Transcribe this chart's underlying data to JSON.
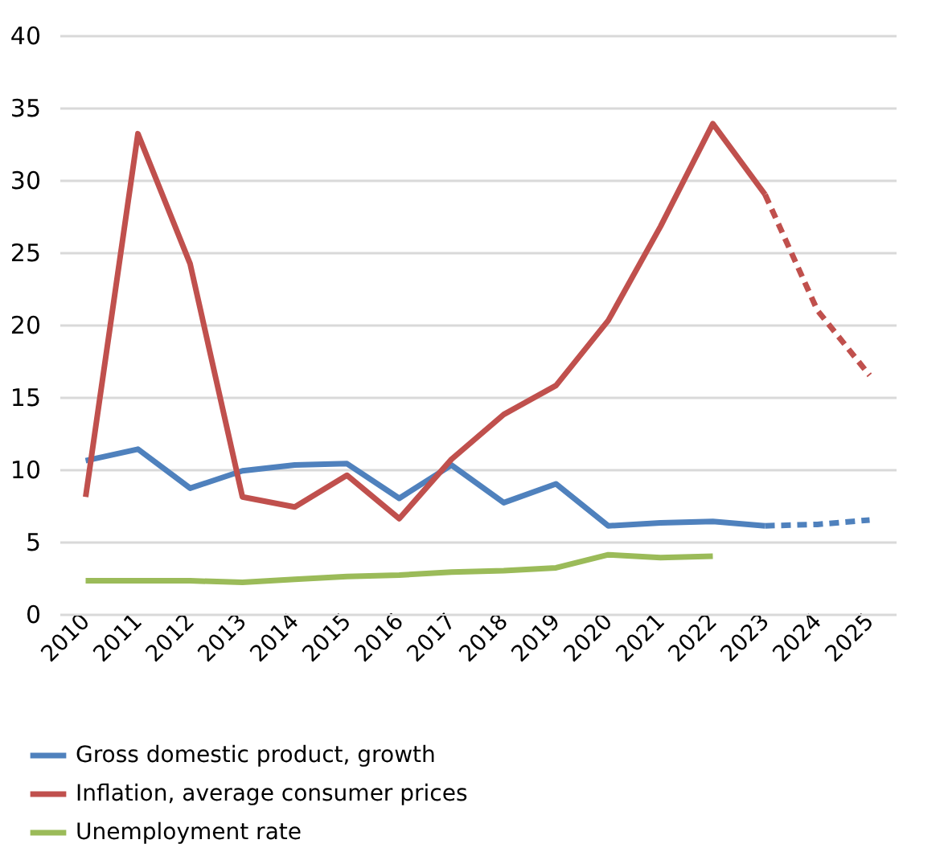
{
  "chart_data": {
    "type": "line",
    "categories": [
      "2010",
      "2011",
      "2012",
      "2013",
      "2014",
      "2015",
      "2016",
      "2017",
      "2018",
      "2019",
      "2020",
      "2021",
      "2022",
      "2023",
      "2024",
      "2025"
    ],
    "series": [
      {
        "name": "Gross domestic product, growth",
        "color": "#4f81bd",
        "line_style": "solid",
        "values": [
          10.6,
          11.4,
          8.7,
          9.9,
          10.3,
          10.4,
          8.0,
          10.3,
          7.7,
          9.0,
          6.1,
          6.3,
          6.4,
          6.1,
          null,
          null
        ]
      },
      {
        "color": "#4f81bd",
        "line_style": "dashed",
        "values": [
          null,
          null,
          null,
          null,
          null,
          null,
          null,
          null,
          null,
          null,
          null,
          null,
          null,
          6.1,
          6.2,
          6.5
        ]
      },
      {
        "name": "Inflation, average consumer prices",
        "color": "#c0504d",
        "line_style": "solid",
        "values": [
          8.1,
          33.2,
          24.2,
          8.1,
          7.4,
          9.6,
          6.6,
          10.7,
          13.8,
          15.8,
          20.3,
          26.8,
          33.9,
          29.0,
          null,
          null
        ]
      },
      {
        "color": "#c0504d",
        "line_style": "dashed",
        "values": [
          null,
          null,
          null,
          null,
          null,
          null,
          null,
          null,
          null,
          null,
          null,
          null,
          null,
          29.0,
          21.0,
          16.5
        ]
      },
      {
        "name": "Unemployment rate",
        "color": "#9bbb59",
        "line_style": "solid",
        "values": [
          2.3,
          2.3,
          2.3,
          2.2,
          2.4,
          2.6,
          2.7,
          2.9,
          3.0,
          3.2,
          4.1,
          3.9,
          4.0,
          null,
          null,
          null
        ]
      }
    ],
    "ylim": [
      0,
      40
    ],
    "yticks": [
      0,
      5,
      10,
      15,
      20,
      25,
      30,
      35,
      40
    ],
    "grid": "y",
    "legend": "bottom left",
    "marker": "none"
  }
}
